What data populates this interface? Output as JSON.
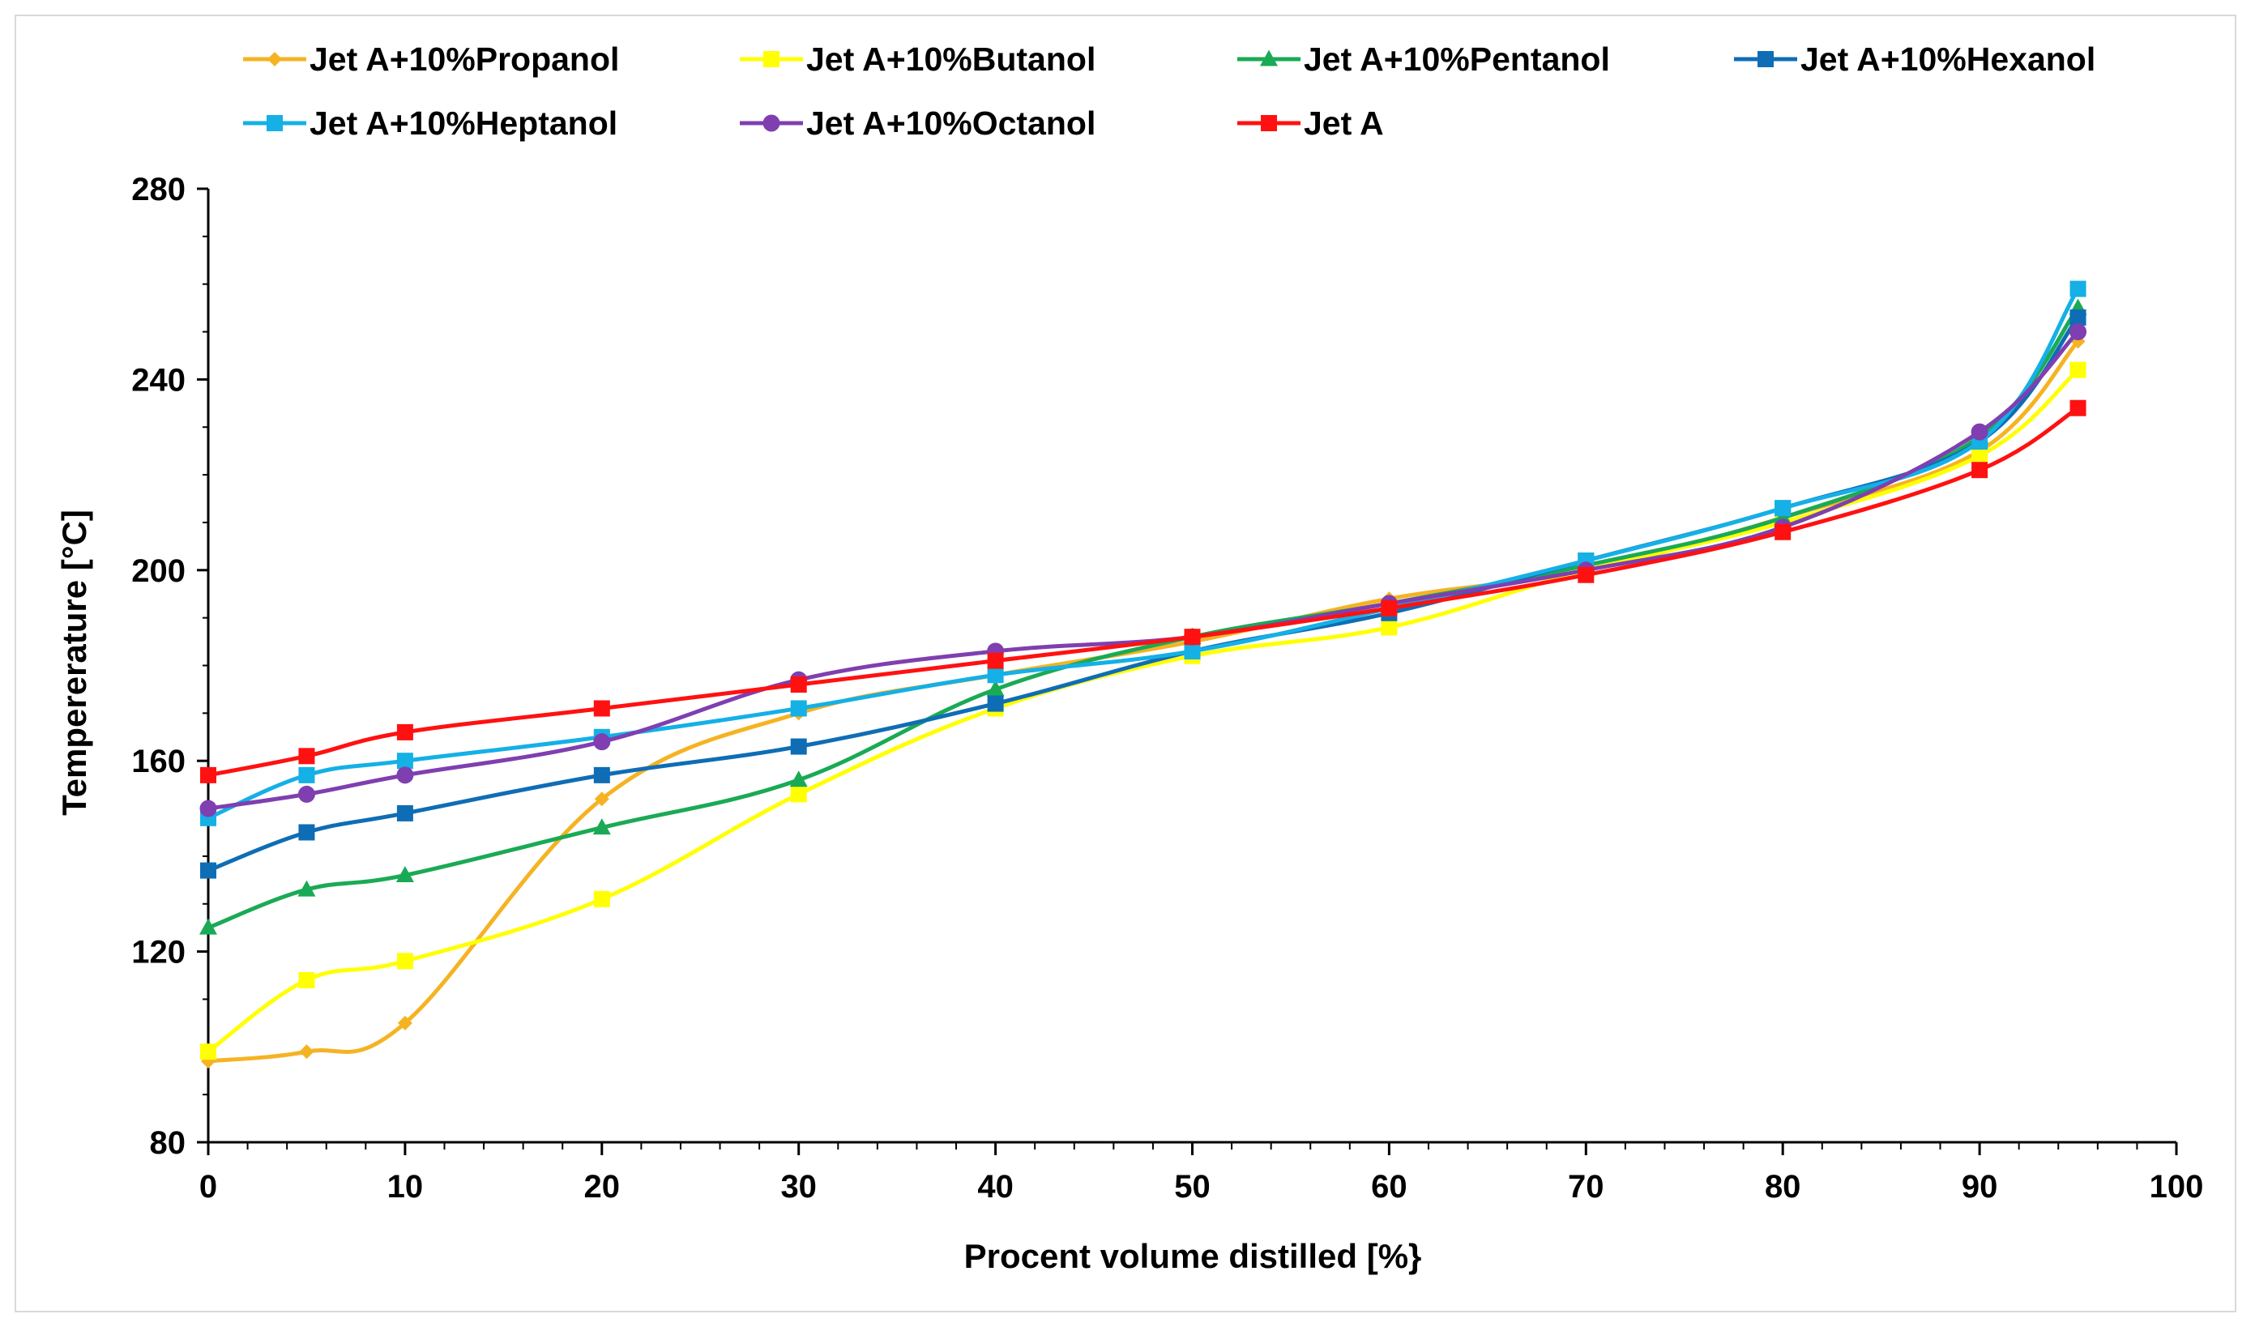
{
  "chart_data": {
    "type": "line",
    "title": "",
    "xlabel": "Procent volume distilled [%}",
    "ylabel": "Tempererature [°C]",
    "xlim": [
      0,
      100
    ],
    "ylim": [
      80,
      280
    ],
    "x_ticks": [
      0,
      10,
      20,
      30,
      40,
      50,
      60,
      70,
      80,
      90,
      100
    ],
    "y_ticks": [
      80,
      120,
      160,
      200,
      240,
      280
    ],
    "x_minor_step": 2,
    "grid": false,
    "legend_position": "top",
    "x": [
      0,
      5,
      10,
      20,
      30,
      40,
      50,
      60,
      70,
      80,
      90,
      95
    ],
    "series": [
      {
        "name": "Jet A+10%Propanol",
        "color": "#f5b323",
        "marker": "diamond",
        "values": [
          97,
          99,
          105,
          152,
          170,
          178,
          185,
          194,
          200,
          211,
          225,
          248
        ]
      },
      {
        "name": "Jet A+10%Butanol",
        "color": "#ffff00",
        "marker": "square",
        "values": [
          99,
          114,
          118,
          131,
          153,
          171,
          182,
          188,
          200,
          210,
          224,
          242
        ]
      },
      {
        "name": "Jet A+10%Pentanol",
        "color": "#1aaa55",
        "marker": "triangle",
        "values": [
          125,
          133,
          136,
          146,
          156,
          175,
          186,
          193,
          201,
          211,
          228,
          255
        ]
      },
      {
        "name": "Jet A+10%Hexanol",
        "color": "#0f6db5",
        "marker": "square",
        "values": [
          137,
          145,
          149,
          157,
          163,
          172,
          183,
          191,
          202,
          213,
          227,
          253
        ]
      },
      {
        "name": "Jet A+10%Heptanol",
        "color": "#14b0e6",
        "marker": "square",
        "values": [
          148,
          157,
          160,
          165,
          171,
          178,
          183,
          192,
          202,
          213,
          227,
          259
        ]
      },
      {
        "name": "Jet A+10%Octanol",
        "color": "#7f3fb0",
        "marker": "circle",
        "values": [
          150,
          153,
          157,
          164,
          177,
          183,
          186,
          193,
          200,
          209,
          229,
          250
        ]
      },
      {
        "name": "Jet A",
        "color": "#ff1111",
        "marker": "square",
        "values": [
          157,
          161,
          166,
          171,
          176,
          181,
          186,
          192,
          199,
          208,
          221,
          234
        ]
      }
    ]
  }
}
